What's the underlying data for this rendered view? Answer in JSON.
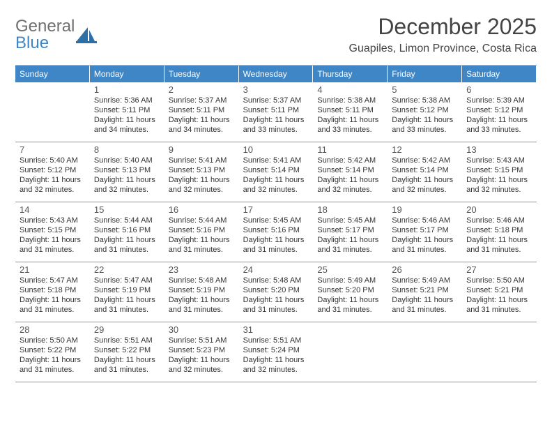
{
  "colors": {
    "brand_blue": "#3f86c6",
    "header_bg": "#3f86c6",
    "header_text": "#ffffff",
    "grid_border": "#6c9bc4",
    "logo_grey": "#6f6f6f",
    "text": "#333333",
    "title": "#444444",
    "background": "#ffffff"
  },
  "typography": {
    "title_fontsize": 32,
    "subtitle_fontsize": 16,
    "dayhead_fontsize": 12,
    "cell_fontsize": 11,
    "daynum_fontsize": 13
  },
  "logo": {
    "text_top": "General",
    "text_bottom": "Blue",
    "icon": "generalblue-sail-icon"
  },
  "header": {
    "title": "December 2025",
    "subtitle": "Guapiles, Limon Province, Costa Rica"
  },
  "calendar": {
    "type": "month-calendar",
    "columns": 7,
    "day_names": [
      "Sunday",
      "Monday",
      "Tuesday",
      "Wednesday",
      "Thursday",
      "Friday",
      "Saturday"
    ],
    "weeks": [
      [
        {},
        {
          "day": "1",
          "sunrise": "Sunrise: 5:36 AM",
          "sunset": "Sunset: 5:11 PM",
          "daylight": "Daylight: 11 hours and 34 minutes."
        },
        {
          "day": "2",
          "sunrise": "Sunrise: 5:37 AM",
          "sunset": "Sunset: 5:11 PM",
          "daylight": "Daylight: 11 hours and 34 minutes."
        },
        {
          "day": "3",
          "sunrise": "Sunrise: 5:37 AM",
          "sunset": "Sunset: 5:11 PM",
          "daylight": "Daylight: 11 hours and 33 minutes."
        },
        {
          "day": "4",
          "sunrise": "Sunrise: 5:38 AM",
          "sunset": "Sunset: 5:11 PM",
          "daylight": "Daylight: 11 hours and 33 minutes."
        },
        {
          "day": "5",
          "sunrise": "Sunrise: 5:38 AM",
          "sunset": "Sunset: 5:12 PM",
          "daylight": "Daylight: 11 hours and 33 minutes."
        },
        {
          "day": "6",
          "sunrise": "Sunrise: 5:39 AM",
          "sunset": "Sunset: 5:12 PM",
          "daylight": "Daylight: 11 hours and 33 minutes."
        }
      ],
      [
        {
          "day": "7",
          "sunrise": "Sunrise: 5:40 AM",
          "sunset": "Sunset: 5:12 PM",
          "daylight": "Daylight: 11 hours and 32 minutes."
        },
        {
          "day": "8",
          "sunrise": "Sunrise: 5:40 AM",
          "sunset": "Sunset: 5:13 PM",
          "daylight": "Daylight: 11 hours and 32 minutes."
        },
        {
          "day": "9",
          "sunrise": "Sunrise: 5:41 AM",
          "sunset": "Sunset: 5:13 PM",
          "daylight": "Daylight: 11 hours and 32 minutes."
        },
        {
          "day": "10",
          "sunrise": "Sunrise: 5:41 AM",
          "sunset": "Sunset: 5:14 PM",
          "daylight": "Daylight: 11 hours and 32 minutes."
        },
        {
          "day": "11",
          "sunrise": "Sunrise: 5:42 AM",
          "sunset": "Sunset: 5:14 PM",
          "daylight": "Daylight: 11 hours and 32 minutes."
        },
        {
          "day": "12",
          "sunrise": "Sunrise: 5:42 AM",
          "sunset": "Sunset: 5:14 PM",
          "daylight": "Daylight: 11 hours and 32 minutes."
        },
        {
          "day": "13",
          "sunrise": "Sunrise: 5:43 AM",
          "sunset": "Sunset: 5:15 PM",
          "daylight": "Daylight: 11 hours and 32 minutes."
        }
      ],
      [
        {
          "day": "14",
          "sunrise": "Sunrise: 5:43 AM",
          "sunset": "Sunset: 5:15 PM",
          "daylight": "Daylight: 11 hours and 31 minutes."
        },
        {
          "day": "15",
          "sunrise": "Sunrise: 5:44 AM",
          "sunset": "Sunset: 5:16 PM",
          "daylight": "Daylight: 11 hours and 31 minutes."
        },
        {
          "day": "16",
          "sunrise": "Sunrise: 5:44 AM",
          "sunset": "Sunset: 5:16 PM",
          "daylight": "Daylight: 11 hours and 31 minutes."
        },
        {
          "day": "17",
          "sunrise": "Sunrise: 5:45 AM",
          "sunset": "Sunset: 5:16 PM",
          "daylight": "Daylight: 11 hours and 31 minutes."
        },
        {
          "day": "18",
          "sunrise": "Sunrise: 5:45 AM",
          "sunset": "Sunset: 5:17 PM",
          "daylight": "Daylight: 11 hours and 31 minutes."
        },
        {
          "day": "19",
          "sunrise": "Sunrise: 5:46 AM",
          "sunset": "Sunset: 5:17 PM",
          "daylight": "Daylight: 11 hours and 31 minutes."
        },
        {
          "day": "20",
          "sunrise": "Sunrise: 5:46 AM",
          "sunset": "Sunset: 5:18 PM",
          "daylight": "Daylight: 11 hours and 31 minutes."
        }
      ],
      [
        {
          "day": "21",
          "sunrise": "Sunrise: 5:47 AM",
          "sunset": "Sunset: 5:18 PM",
          "daylight": "Daylight: 11 hours and 31 minutes."
        },
        {
          "day": "22",
          "sunrise": "Sunrise: 5:47 AM",
          "sunset": "Sunset: 5:19 PM",
          "daylight": "Daylight: 11 hours and 31 minutes."
        },
        {
          "day": "23",
          "sunrise": "Sunrise: 5:48 AM",
          "sunset": "Sunset: 5:19 PM",
          "daylight": "Daylight: 11 hours and 31 minutes."
        },
        {
          "day": "24",
          "sunrise": "Sunrise: 5:48 AM",
          "sunset": "Sunset: 5:20 PM",
          "daylight": "Daylight: 11 hours and 31 minutes."
        },
        {
          "day": "25",
          "sunrise": "Sunrise: 5:49 AM",
          "sunset": "Sunset: 5:20 PM",
          "daylight": "Daylight: 11 hours and 31 minutes."
        },
        {
          "day": "26",
          "sunrise": "Sunrise: 5:49 AM",
          "sunset": "Sunset: 5:21 PM",
          "daylight": "Daylight: 11 hours and 31 minutes."
        },
        {
          "day": "27",
          "sunrise": "Sunrise: 5:50 AM",
          "sunset": "Sunset: 5:21 PM",
          "daylight": "Daylight: 11 hours and 31 minutes."
        }
      ],
      [
        {
          "day": "28",
          "sunrise": "Sunrise: 5:50 AM",
          "sunset": "Sunset: 5:22 PM",
          "daylight": "Daylight: 11 hours and 31 minutes."
        },
        {
          "day": "29",
          "sunrise": "Sunrise: 5:51 AM",
          "sunset": "Sunset: 5:22 PM",
          "daylight": "Daylight: 11 hours and 31 minutes."
        },
        {
          "day": "30",
          "sunrise": "Sunrise: 5:51 AM",
          "sunset": "Sunset: 5:23 PM",
          "daylight": "Daylight: 11 hours and 32 minutes."
        },
        {
          "day": "31",
          "sunrise": "Sunrise: 5:51 AM",
          "sunset": "Sunset: 5:24 PM",
          "daylight": "Daylight: 11 hours and 32 minutes."
        },
        {},
        {},
        {}
      ]
    ]
  }
}
